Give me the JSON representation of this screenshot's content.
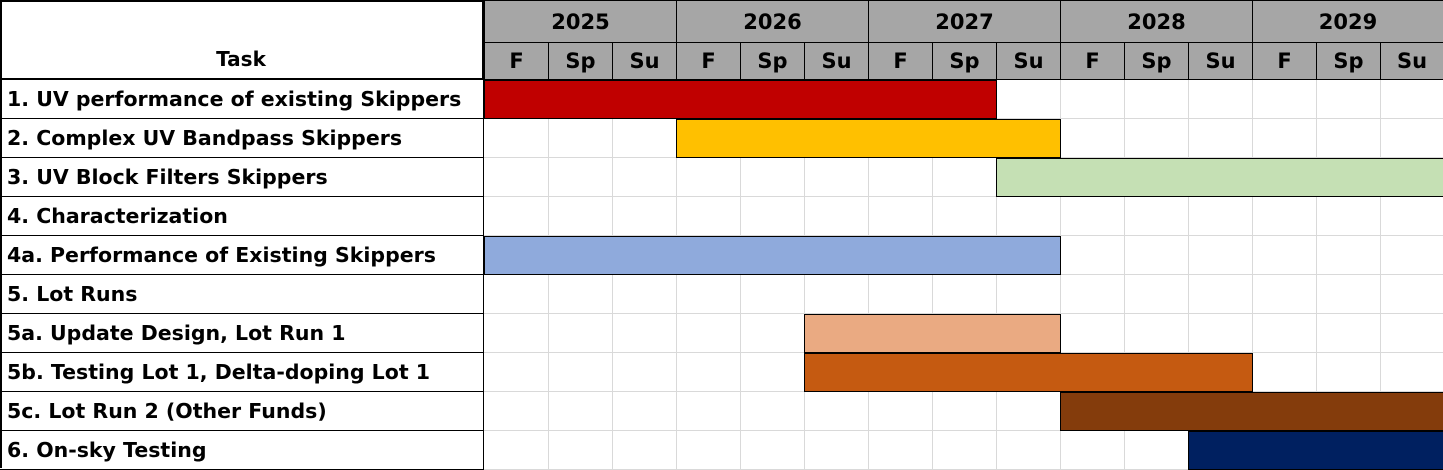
{
  "chart_data": {
    "type": "gantt",
    "task_column_label": "Task",
    "years": [
      "2025",
      "2026",
      "2027",
      "2028",
      "2029"
    ],
    "terms": [
      "F",
      "Sp",
      "Su",
      "F",
      "Sp",
      "Su",
      "F",
      "Sp",
      "Su",
      "F",
      "Sp",
      "Su",
      "F",
      "Sp",
      "Su"
    ],
    "tasks": [
      {
        "label": "1. UV performance of existing Skippers",
        "start_term": 0,
        "end_term": 8,
        "color": "#c00000"
      },
      {
        "label": "2. Complex UV Bandpass Skippers",
        "start_term": 3,
        "end_term": 9,
        "color": "#ffc000"
      },
      {
        "label": "3. UV Block Filters Skippers",
        "start_term": 8,
        "end_term": 15,
        "color": "#c5e0b4"
      },
      {
        "label": "4. Characterization",
        "start_term": null,
        "end_term": null,
        "color": ""
      },
      {
        "label": "4a. Performance of Existing Skippers",
        "start_term": 0,
        "end_term": 9,
        "color": "#8faadc"
      },
      {
        "label": "5. Lot Runs",
        "start_term": null,
        "end_term": null,
        "color": ""
      },
      {
        "label": "5a. Update Design, Lot Run 1",
        "start_term": 5,
        "end_term": 9,
        "color": "#eaaa82"
      },
      {
        "label": "5b. Testing Lot 1, Delta-doping Lot 1",
        "start_term": 5,
        "end_term": 12,
        "color": "#c55a11"
      },
      {
        "label": "5c. Lot Run 2 (Other Funds)",
        "start_term": 9,
        "end_term": 15,
        "color": "#843c0c"
      },
      {
        "label": "6. On-sky Testing",
        "start_term": 11,
        "end_term": 15,
        "color": "#002060"
      }
    ]
  }
}
